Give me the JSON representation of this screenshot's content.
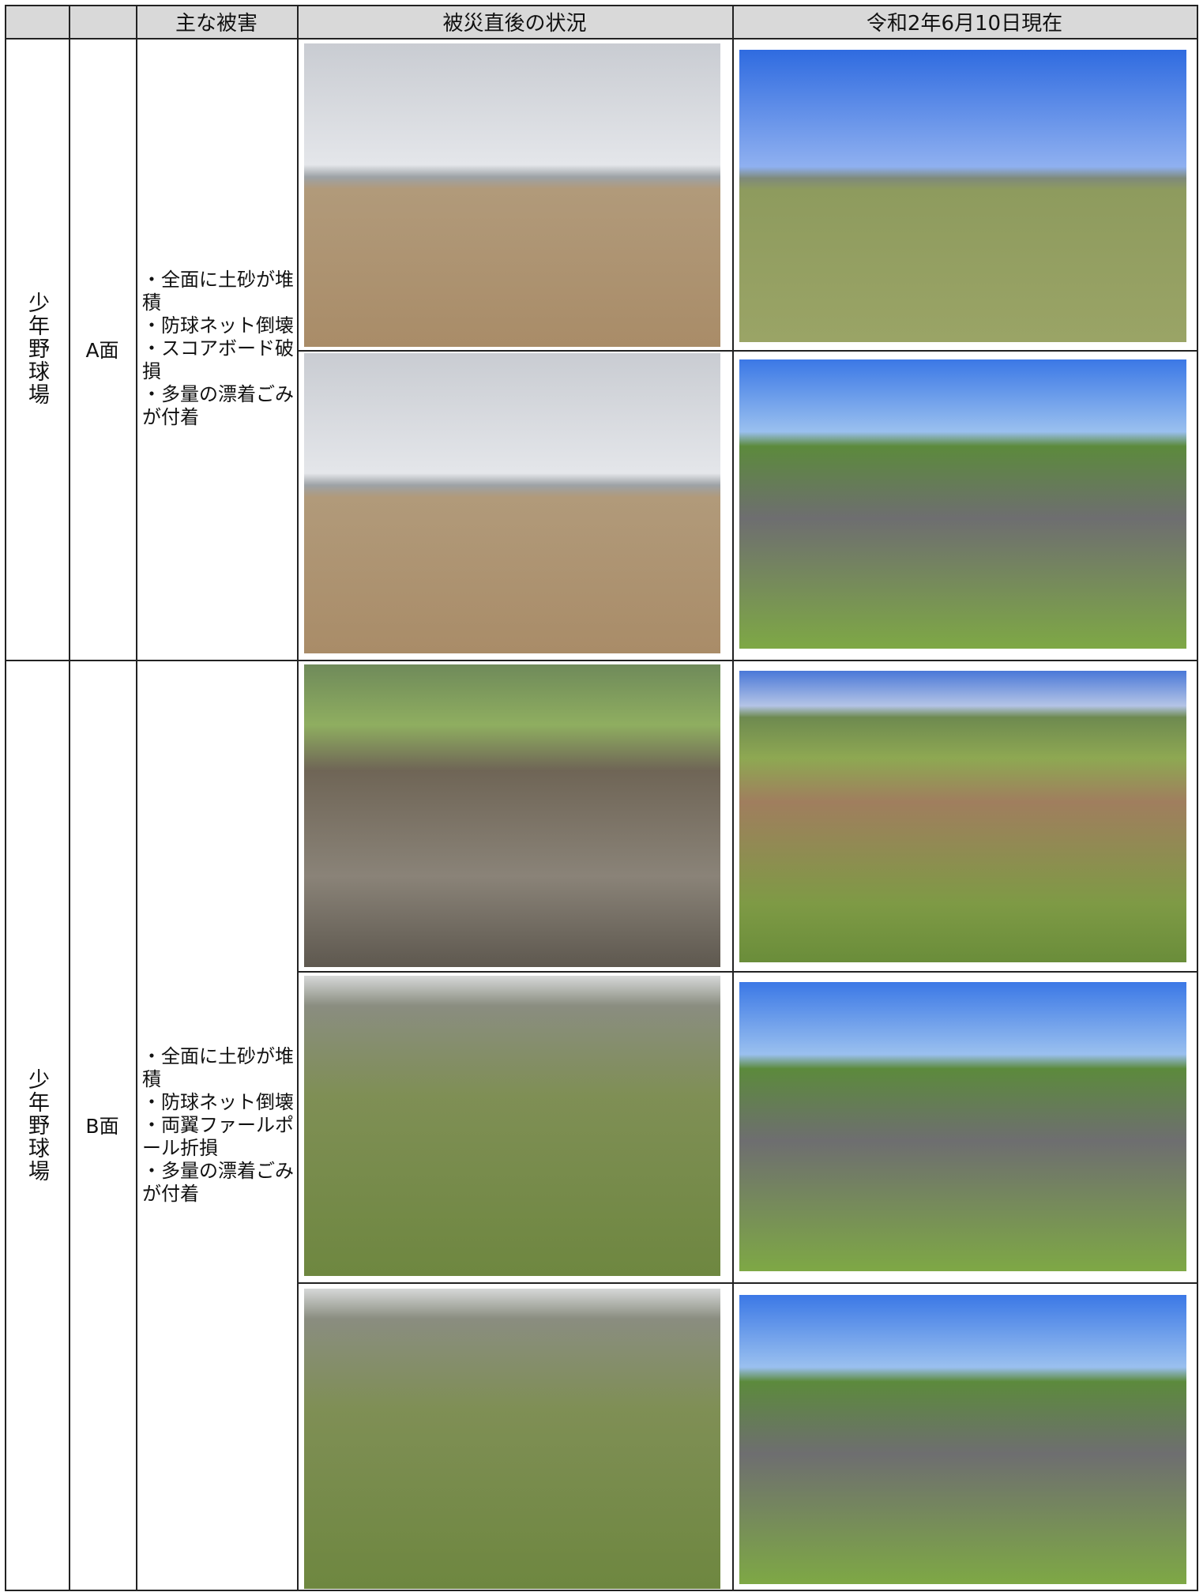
{
  "header": {
    "columns": [
      "主な被害",
      "被災直後の状況",
      "令和2年6月10日現在"
    ]
  },
  "sections": [
    {
      "facility": "少年野球場",
      "face": "A面",
      "damages": [
        "・全面に土砂が堆積",
        "・防球ネット倒壊",
        "・スコアボード破損",
        "・多量の漂着ごみが付着"
      ]
    },
    {
      "facility": "少年野球場",
      "face": "B面",
      "damages": [
        "・全面に土砂が堆積",
        "・防球ネット倒壊",
        "・両翼ファールポール折損",
        "・多量の漂着ごみが付着"
      ]
    }
  ]
}
